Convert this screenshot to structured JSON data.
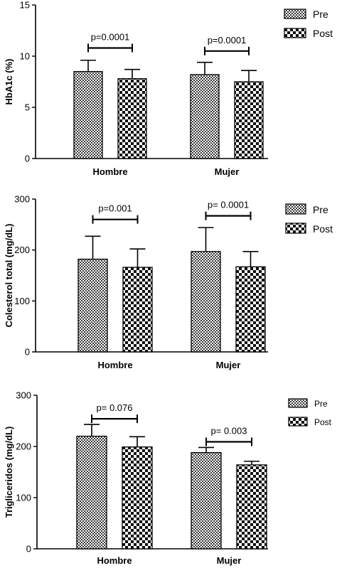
{
  "colors": {
    "ink": "#000000",
    "background": "#ffffff"
  },
  "chart_data": [
    {
      "type": "bar",
      "ylabel": "HbA1c (%)",
      "ylim": [
        0,
        15
      ],
      "yticks": [
        0,
        5,
        10,
        15
      ],
      "categories": [
        "Hombre",
        "Mujer"
      ],
      "series": [
        {
          "name": "Pre",
          "pattern": "fine-checker",
          "values": [
            8.5,
            8.2
          ],
          "errors": [
            1.1,
            1.2
          ]
        },
        {
          "name": "Post",
          "pattern": "coarse-checker",
          "values": [
            7.8,
            7.5
          ],
          "errors": [
            0.9,
            1.1
          ]
        }
      ],
      "annotations": [
        {
          "category": "Hombre",
          "text": "p=0.0001",
          "y": 10.8
        },
        {
          "category": "Mujer",
          "text": "p=0.0001",
          "y": 10.5
        }
      ],
      "legend": "top-right",
      "grid": false
    },
    {
      "type": "bar",
      "ylabel": "Colesterol total (mg/dL)",
      "ylim": [
        0,
        300
      ],
      "yticks": [
        0,
        100,
        200,
        300
      ],
      "categories": [
        "Hombre",
        "Mujer"
      ],
      "series": [
        {
          "name": "Pre",
          "pattern": "fine-checker",
          "values": [
            182,
            197
          ],
          "errors": [
            45,
            47
          ]
        },
        {
          "name": "Post",
          "pattern": "coarse-checker",
          "values": [
            166,
            167
          ],
          "errors": [
            36,
            30
          ]
        }
      ],
      "annotations": [
        {
          "category": "Hombre",
          "text": "p=0.001",
          "y": 260
        },
        {
          "category": "Mujer",
          "text": "p= 0.0001",
          "y": 267
        }
      ],
      "legend": "top-right",
      "grid": false
    },
    {
      "type": "bar",
      "ylabel": "Trigliceridos (mg/dL)",
      "ylim": [
        0,
        300
      ],
      "yticks": [
        0,
        100,
        200,
        300
      ],
      "categories": [
        "Hombre",
        "Mujer"
      ],
      "series": [
        {
          "name": "Pre",
          "pattern": "fine-checker",
          "values": [
            220,
            188
          ],
          "errors": [
            23,
            10
          ]
        },
        {
          "name": "Post",
          "pattern": "coarse-checker",
          "values": [
            199,
            164
          ],
          "errors": [
            20,
            7
          ]
        }
      ],
      "annotations": [
        {
          "category": "Hombre",
          "text": "p= 0.076",
          "y": 254
        },
        {
          "category": "Mujer",
          "text": "p= 0.003",
          "y": 209
        }
      ],
      "legend": "top-right",
      "grid": false
    }
  ]
}
